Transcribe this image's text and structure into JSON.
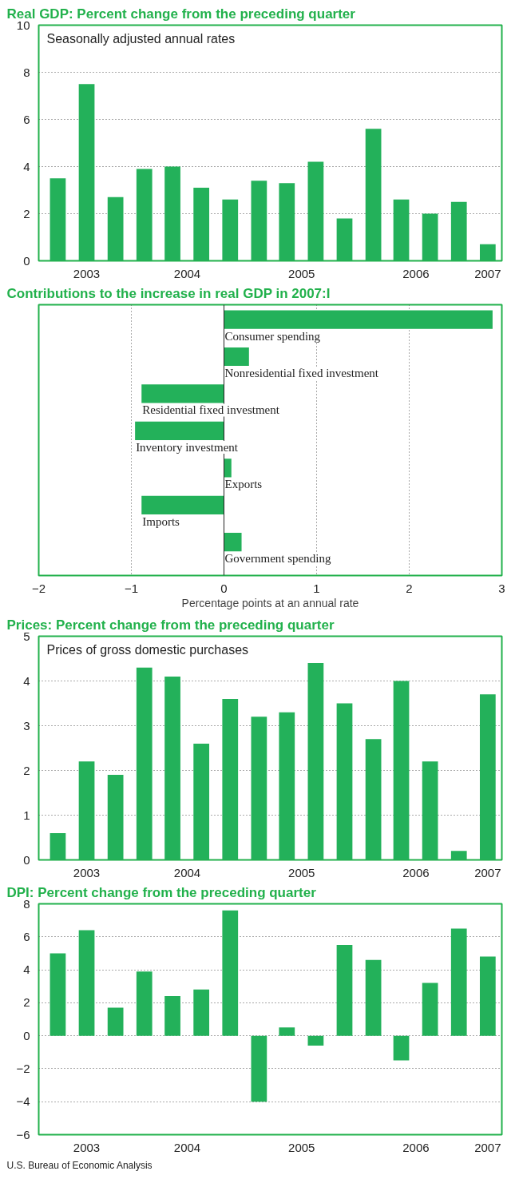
{
  "chart_data": [
    {
      "type": "bar",
      "title": "Real GDP: Percent change from the preceding quarter",
      "subtitle": "Seasonally adjusted annual rates",
      "color": "#23b15a",
      "x": [
        "2003-05-15",
        "2003-08-15",
        "2003-11-15",
        "2004-02-15",
        "2004-05-15",
        "2004-08-15",
        "2004-11-15",
        "2005-02-15",
        "2005-05-15",
        "2005-08-15",
        "2005-11-15",
        "2006-02-15",
        "2006-05-15",
        "2006-08-15",
        "2006-11-15",
        "2007-02-15"
      ],
      "values": [
        3.5,
        7.5,
        2.7,
        3.9,
        4.0,
        3.1,
        2.6,
        3.4,
        3.3,
        4.2,
        1.8,
        5.6,
        2.6,
        2.0,
        2.5,
        0.7
      ],
      "xlim": [
        "2003-03-15",
        "2007-04-01"
      ],
      "xticks": [
        {
          "value": "2003-08-15",
          "label": "2003"
        },
        {
          "value": "2004-07-01",
          "label": "2004"
        },
        {
          "value": "2005-07-01",
          "label": "2005"
        },
        {
          "value": "2006-07-01",
          "label": "2006"
        },
        {
          "value": "2007-02-15",
          "label": "2007"
        }
      ],
      "ylim": [
        0,
        10
      ],
      "yticks": [
        0,
        2,
        4,
        6,
        8,
        10
      ],
      "grid": "y"
    },
    {
      "type": "bar",
      "orientation": "horizontal",
      "title": "Contributions to the increase in real GDP in 2007:I",
      "xlabel": "Percentage points at an annual rate",
      "color": "#23b15a",
      "categories": [
        "Consumer spending",
        "Nonresidential fixed investment",
        "Residential fixed investment",
        "Inventory investment",
        "Exports",
        "Imports",
        "Government spending"
      ],
      "values": [
        2.9,
        0.27,
        -0.89,
        -0.96,
        0.08,
        -0.89,
        0.19
      ],
      "xlim": [
        -2,
        3
      ],
      "xticks": [
        {
          "value": -2,
          "label": "−2"
        },
        {
          "value": -1,
          "label": "−1"
        },
        0,
        1,
        2,
        3
      ],
      "grid": "x"
    },
    {
      "type": "bar",
      "title": "Prices: Percent change from the preceding quarter",
      "subtitle": "Prices of gross domestic purchases",
      "color": "#23b15a",
      "x": [
        "2003-05-15",
        "2003-08-15",
        "2003-11-15",
        "2004-02-15",
        "2004-05-15",
        "2004-08-15",
        "2004-11-15",
        "2005-02-15",
        "2005-05-15",
        "2005-08-15",
        "2005-11-15",
        "2006-02-15",
        "2006-05-15",
        "2006-08-15",
        "2006-11-15",
        "2007-02-15"
      ],
      "values": [
        0.6,
        2.2,
        1.9,
        4.3,
        4.1,
        2.6,
        3.6,
        3.2,
        3.3,
        4.4,
        3.5,
        2.7,
        4.0,
        2.2,
        0.2,
        3.7
      ],
      "xlim": [
        "2003-03-15",
        "2007-04-01"
      ],
      "xticks": [
        {
          "value": "2003-08-15",
          "label": "2003"
        },
        {
          "value": "2004-07-01",
          "label": "2004"
        },
        {
          "value": "2005-07-01",
          "label": "2005"
        },
        {
          "value": "2006-07-01",
          "label": "2006"
        },
        {
          "value": "2007-02-15",
          "label": "2007"
        }
      ],
      "ylim": [
        0,
        5
      ],
      "yticks": [
        0,
        1,
        2,
        3,
        4,
        5
      ],
      "grid": "y"
    },
    {
      "type": "bar",
      "title": "DPI: Percent change from the preceding quarter",
      "color": "#23b15a",
      "x": [
        "2003-05-15",
        "2003-08-15",
        "2003-11-15",
        "2004-02-15",
        "2004-05-15",
        "2004-08-15",
        "2004-11-15",
        "2005-02-15",
        "2005-05-15",
        "2005-08-15",
        "2005-11-15",
        "2006-02-15",
        "2006-05-15",
        "2006-08-15",
        "2006-11-15",
        "2007-02-15"
      ],
      "values": [
        5.0,
        6.4,
        1.7,
        3.9,
        2.4,
        2.8,
        7.6,
        -4.0,
        0.5,
        -0.6,
        5.5,
        4.6,
        -1.5,
        3.2,
        6.5,
        4.8
      ],
      "xlim": [
        "2003-03-15",
        "2007-04-01"
      ],
      "xticks": [
        {
          "value": "2003-08-15",
          "label": "2003"
        },
        {
          "value": "2004-07-01",
          "label": "2004"
        },
        {
          "value": "2005-07-01",
          "label": "2005"
        },
        {
          "value": "2006-07-01",
          "label": "2006"
        },
        {
          "value": "2007-02-15",
          "label": "2007"
        }
      ],
      "ylim": [
        -6,
        8
      ],
      "yticks": [
        {
          "value": -6,
          "label": "−6"
        },
        {
          "value": -4,
          "label": "−4"
        },
        {
          "value": -2,
          "label": "−2"
        },
        0,
        2,
        4,
        6,
        8
      ],
      "grid": "y",
      "annotations": [
        "U.S. Bureau of Economic Analysis"
      ]
    }
  ]
}
